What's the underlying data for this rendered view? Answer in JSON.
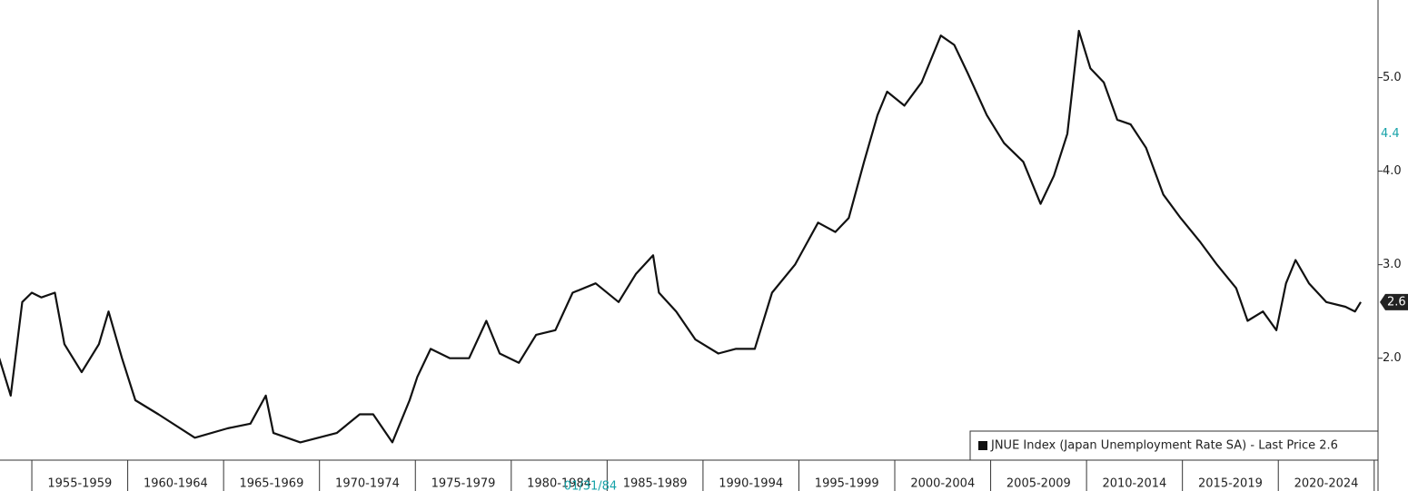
{
  "chart_data": {
    "type": "line",
    "x": [
      1953.3,
      1953.9,
      1954.5,
      1955.0,
      1955.5,
      1956.2,
      1956.7,
      1957.6,
      1958.5,
      1959.0,
      1959.7,
      1960.4,
      1961.6,
      1963.5,
      1965.2,
      1966.4,
      1967.2,
      1967.6,
      1969.0,
      1970.9,
      1972.1,
      1972.8,
      1973.8,
      1974.7,
      1975.1,
      1975.8,
      1976.8,
      1977.8,
      1978.7,
      1979.4,
      1980.4,
      1981.3,
      1982.3,
      1983.2,
      1984.4,
      1985.6,
      1986.5,
      1987.4,
      1987.7,
      1988.6,
      1989.6,
      1990.8,
      1991.7,
      1992.7,
      1993.6,
      1994.8,
      1996.0,
      1996.9,
      1997.6,
      1998.4,
      1999.1,
      1999.6,
      2000.5,
      2001.4,
      2002.4,
      2003.1,
      2003.8,
      2004.8,
      2005.7,
      2006.7,
      2007.6,
      2008.3,
      2009.0,
      2009.6,
      2010.2,
      2010.9,
      2011.6,
      2012.3,
      2013.1,
      2014.0,
      2014.9,
      2015.9,
      2016.8,
      2017.8,
      2018.4,
      2019.2,
      2019.9,
      2020.4,
      2020.9,
      2021.6,
      2022.5,
      2023.5,
      2024.0,
      2024.3
    ],
    "series": [
      {
        "name": "JNUE Index (Japan Unemployment Rate SA) - Last Price 2.6",
        "color": "#111111",
        "values": [
          2.0,
          1.6,
          2.6,
          2.7,
          2.65,
          2.7,
          2.15,
          1.85,
          2.15,
          2.5,
          2.0,
          1.55,
          1.4,
          1.15,
          1.25,
          1.3,
          1.6,
          1.2,
          1.1,
          1.2,
          1.4,
          1.4,
          1.1,
          1.55,
          1.8,
          2.1,
          2.0,
          2.0,
          2.4,
          2.05,
          1.95,
          2.25,
          2.3,
          2.7,
          2.8,
          2.6,
          2.9,
          3.1,
          2.7,
          2.5,
          2.2,
          2.05,
          2.1,
          2.1,
          2.7,
          3.0,
          3.45,
          3.35,
          3.5,
          4.1,
          4.6,
          4.85,
          4.7,
          4.95,
          5.45,
          5.35,
          5.05,
          4.6,
          4.3,
          4.1,
          3.65,
          3.95,
          4.4,
          5.5,
          5.1,
          4.95,
          4.55,
          4.5,
          4.25,
          3.75,
          3.5,
          3.25,
          3.0,
          2.75,
          2.4,
          2.5,
          2.3,
          2.8,
          3.05,
          2.8,
          2.6,
          2.55,
          2.5,
          2.6
        ]
      }
    ],
    "xlim": [
      1953.34,
      2025.2
    ],
    "ylim": [
      0.91,
      5.83
    ],
    "yticks": [
      {
        "value": 2,
        "label": "2.0"
      },
      {
        "value": 3,
        "label": "3.0"
      },
      {
        "value": 4,
        "label": "4.0"
      },
      {
        "value": 5,
        "label": "5.0"
      }
    ],
    "periods": [
      {
        "label": "1955-1959",
        "start": 1955,
        "end": 1960
      },
      {
        "label": "1960-1964",
        "start": 1960,
        "end": 1965
      },
      {
        "label": "1965-1969",
        "start": 1965,
        "end": 1970
      },
      {
        "label": "1970-1974",
        "start": 1970,
        "end": 1975
      },
      {
        "label": "1975-1979",
        "start": 1975,
        "end": 1980
      },
      {
        "label": "1980-1984",
        "start": 1980,
        "end": 1985
      },
      {
        "label": "1985-1989",
        "start": 1985,
        "end": 1990
      },
      {
        "label": "1990-1994",
        "start": 1990,
        "end": 1995
      },
      {
        "label": "1995-1999",
        "start": 1995,
        "end": 2000
      },
      {
        "label": "2000-2004",
        "start": 2000,
        "end": 2005
      },
      {
        "label": "2005-2009",
        "start": 2005,
        "end": 2010
      },
      {
        "label": "2010-2014",
        "start": 2010,
        "end": 2015
      },
      {
        "label": "2015-2019",
        "start": 2015,
        "end": 2020
      },
      {
        "label": "2020-2024",
        "start": 2020,
        "end": 2025
      }
    ],
    "last_price": 2.6,
    "marker_value": 4.4,
    "cursor_label": "01/31/84",
    "legend": "bottom-right"
  }
}
